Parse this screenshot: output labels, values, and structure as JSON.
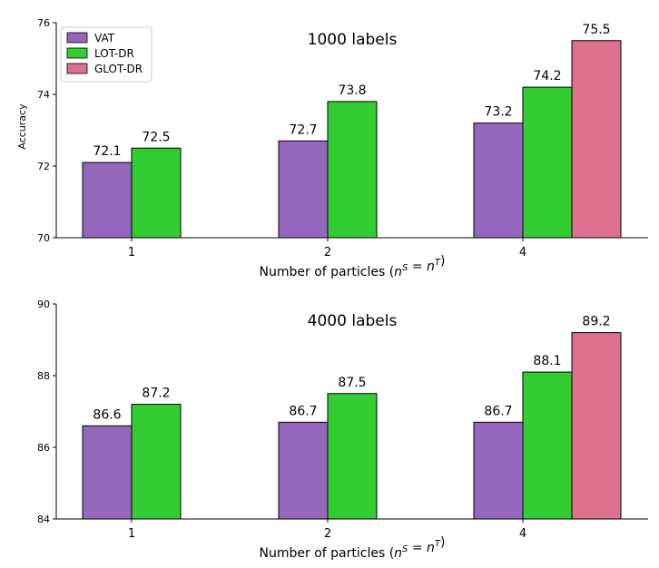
{
  "chart_data": [
    {
      "type": "bar",
      "title": "1000 labels",
      "categories": [
        "1",
        "2",
        "4"
      ],
      "xlabel": "Number of particles (n^S = n^T)",
      "ylabel": "Accuracy",
      "ylim": [
        70,
        76
      ],
      "yticks": [
        70,
        72,
        74,
        76
      ],
      "legend_placement": "top-left",
      "series": [
        {
          "name": "VAT",
          "color": "#9467bd",
          "values": [
            72.1,
            72.7,
            73.2
          ]
        },
        {
          "name": "LOT-DR",
          "color": "#33cc33",
          "values": [
            72.5,
            73.8,
            74.2
          ]
        },
        {
          "name": "GLOT-DR",
          "color": "#dd6f8f",
          "values": [
            null,
            null,
            75.5
          ]
        }
      ]
    },
    {
      "type": "bar",
      "title": "4000 labels",
      "categories": [
        "1",
        "2",
        "4"
      ],
      "xlabel": "Number of particles (n^S = n^T)",
      "ylabel": "",
      "ylim": [
        84,
        90
      ],
      "yticks": [
        84,
        86,
        88,
        90
      ],
      "series": [
        {
          "name": "VAT",
          "color": "#9467bd",
          "values": [
            86.6,
            86.7,
            86.7
          ]
        },
        {
          "name": "LOT-DR",
          "color": "#33cc33",
          "values": [
            87.2,
            87.5,
            88.1
          ]
        },
        {
          "name": "GLOT-DR",
          "color": "#dd6f8f",
          "values": [
            null,
            null,
            89.2
          ]
        }
      ]
    }
  ]
}
